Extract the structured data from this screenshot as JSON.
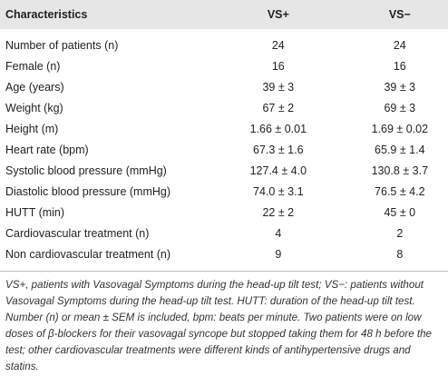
{
  "table": {
    "headers": [
      "Characteristics",
      "VS+",
      "VS−"
    ],
    "rows": [
      [
        "Number of patients (n)",
        "24",
        "24"
      ],
      [
        "Female (n)",
        "16",
        "16"
      ],
      [
        "Age (years)",
        "39 ± 3",
        "39 ± 3"
      ],
      [
        "Weight (kg)",
        "67 ± 2",
        "69 ± 3"
      ],
      [
        "Height (m)",
        "1.66 ± 0.01",
        "1.69 ± 0.02"
      ],
      [
        "Heart rate (bpm)",
        "67.3 ± 1.6",
        "65.9 ± 1.4"
      ],
      [
        "Systolic blood pressure (mmHg)",
        "127.4 ± 4.0",
        "130.8 ± 3.7"
      ],
      [
        "Diastolic blood pressure (mmHg)",
        "74.0 ± 3.1",
        "76.5 ± 4.2"
      ],
      [
        "HUTT (min)",
        "22 ± 2",
        "45 ± 0"
      ],
      [
        "Cardiovascular treatment (n)",
        "4",
        "2"
      ],
      [
        "Non cardiovascular treatment (n)",
        "9",
        "8"
      ]
    ]
  },
  "footnote": "VS+, patients with Vasovagal Symptoms during the head-up tilt test; VS−: patients without Vasovagal Symptoms during the head-up tilt test. HUTT: duration of the head-up tilt test. Number (n) or mean ± SEM is included, bpm: beats per minute. Two patients were on low doses of β-blockers for their vasovagal syncope but stopped taking them for 48 h before the test; other cardiovascular treatments were different kinds of antihypertensive drugs and statins."
}
